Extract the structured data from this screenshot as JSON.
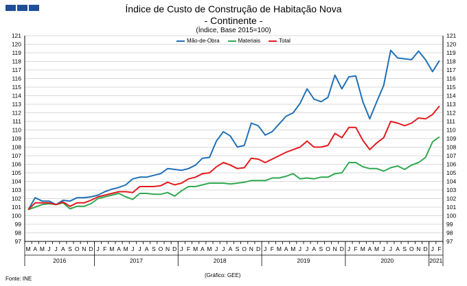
{
  "header": {
    "logo_color": "#1f4e99",
    "title_line1": "Índice de Custo de Construção de Habitação Nova",
    "title_line2": "- Continente -",
    "subtitle": "(Índice, Base 2015=100)"
  },
  "footer": {
    "source": "Fonte: INE",
    "credit": "(Gráfico: GEE)"
  },
  "chart_data": {
    "type": "line",
    "title": "Índice de Custo de Construção de Habitação Nova - Continente -",
    "subtitle": "(Índice, Base 2015=100)",
    "ylim": [
      97,
      121
    ],
    "y_ticks": [
      97,
      98,
      99,
      100,
      101,
      102,
      103,
      104,
      105,
      106,
      107,
      108,
      109,
      110,
      111,
      112,
      113,
      114,
      115,
      116,
      117,
      118,
      119,
      120,
      121
    ],
    "grid": true,
    "legend_position": "top",
    "months": [
      "M",
      "A",
      "M",
      "J",
      "J",
      "A",
      "S",
      "O",
      "N",
      "D",
      "J",
      "F",
      "M",
      "A",
      "M",
      "J",
      "J",
      "A",
      "S",
      "O",
      "N",
      "D",
      "J",
      "F",
      "M",
      "A",
      "M",
      "J",
      "J",
      "A",
      "S",
      "O",
      "N",
      "D",
      "J",
      "F",
      "M",
      "A",
      "M",
      "J",
      "J",
      "A",
      "S",
      "O",
      "N",
      "D",
      "J",
      "F",
      "M",
      "A",
      "M",
      "J",
      "J",
      "A",
      "S",
      "O",
      "N",
      "D",
      "J",
      "F"
    ],
    "years": [
      {
        "label": "2016",
        "start": 0,
        "end": 9
      },
      {
        "label": "2017",
        "start": 10,
        "end": 21
      },
      {
        "label": "2018",
        "start": 22,
        "end": 33
      },
      {
        "label": "2019",
        "start": 34,
        "end": 45
      },
      {
        "label": "2020",
        "start": 46,
        "end": 57
      },
      {
        "label": "2021",
        "start": 58,
        "end": 59
      }
    ],
    "x": [
      "2016-03",
      "2016-04",
      "2016-05",
      "2016-06",
      "2016-07",
      "2016-08",
      "2016-09",
      "2016-10",
      "2016-11",
      "2016-12",
      "2017-01",
      "2017-02",
      "2017-03",
      "2017-04",
      "2017-05",
      "2017-06",
      "2017-07",
      "2017-08",
      "2017-09",
      "2017-10",
      "2017-11",
      "2017-12",
      "2018-01",
      "2018-02",
      "2018-03",
      "2018-04",
      "2018-05",
      "2018-06",
      "2018-07",
      "2018-08",
      "2018-09",
      "2018-10",
      "2018-11",
      "2018-12",
      "2019-01",
      "2019-02",
      "2019-03",
      "2019-04",
      "2019-05",
      "2019-06",
      "2019-07",
      "2019-08",
      "2019-09",
      "2019-10",
      "2019-11",
      "2019-12",
      "2020-01",
      "2020-02",
      "2020-03",
      "2020-04",
      "2020-05",
      "2020-06",
      "2020-07",
      "2020-08",
      "2020-09",
      "2020-10",
      "2020-11",
      "2020-12",
      "2021-01",
      "2021-02"
    ],
    "series": [
      {
        "name": "Mão-de-Obra",
        "color": "#1f6fb4",
        "values": [
          100.7,
          102.1,
          101.7,
          101.7,
          101.3,
          101.8,
          101.7,
          102.1,
          102.1,
          102.2,
          102.4,
          102.8,
          103.1,
          103.3,
          103.6,
          104.3,
          104.5,
          104.5,
          104.7,
          104.9,
          105.5,
          105.4,
          105.3,
          105.5,
          105.9,
          106.7,
          106.8,
          108.7,
          109.8,
          109.3,
          108.0,
          108.2,
          110.8,
          110.5,
          109.4,
          109.8,
          110.7,
          111.6,
          112.0,
          113.1,
          114.8,
          113.6,
          113.3,
          113.8,
          116.4,
          114.8,
          116.2,
          116.3,
          113.3,
          111.3,
          113.3,
          115.2,
          119.3,
          118.4,
          118.3,
          118.2,
          119.2,
          118.2,
          116.8,
          118.1
        ]
      },
      {
        "name": "Materiais",
        "color": "#2fa84f",
        "values": [
          100.7,
          101.0,
          101.3,
          101.4,
          101.3,
          101.5,
          100.8,
          101.1,
          101.1,
          101.4,
          102.0,
          102.2,
          102.4,
          102.6,
          102.2,
          101.9,
          102.6,
          102.6,
          102.5,
          102.5,
          102.7,
          102.3,
          102.9,
          103.4,
          103.4,
          103.6,
          103.8,
          103.8,
          103.8,
          103.7,
          103.8,
          103.9,
          104.1,
          104.1,
          104.1,
          104.4,
          104.4,
          104.6,
          104.9,
          104.3,
          104.4,
          104.3,
          104.5,
          104.5,
          104.9,
          105.0,
          106.2,
          106.2,
          105.7,
          105.5,
          105.5,
          105.2,
          105.6,
          105.8,
          105.4,
          105.9,
          106.2,
          106.8,
          108.6,
          109.2
        ]
      },
      {
        "name": "Total",
        "color": "#e3191c",
        "values": [
          100.7,
          101.5,
          101.5,
          101.5,
          101.3,
          101.6,
          101.1,
          101.5,
          101.5,
          101.8,
          102.2,
          102.4,
          102.6,
          102.8,
          102.8,
          102.7,
          103.4,
          103.4,
          103.4,
          103.5,
          103.9,
          103.6,
          103.8,
          104.3,
          104.5,
          104.9,
          105.0,
          105.7,
          106.2,
          105.9,
          105.5,
          105.6,
          106.7,
          106.6,
          106.2,
          106.6,
          107.0,
          107.4,
          107.7,
          108.0,
          108.7,
          108.0,
          108.0,
          108.2,
          109.6,
          109.1,
          110.3,
          110.3,
          108.8,
          107.7,
          108.5,
          109.1,
          111.0,
          110.8,
          110.5,
          110.8,
          111.4,
          111.3,
          111.8,
          112.8
        ]
      }
    ]
  }
}
